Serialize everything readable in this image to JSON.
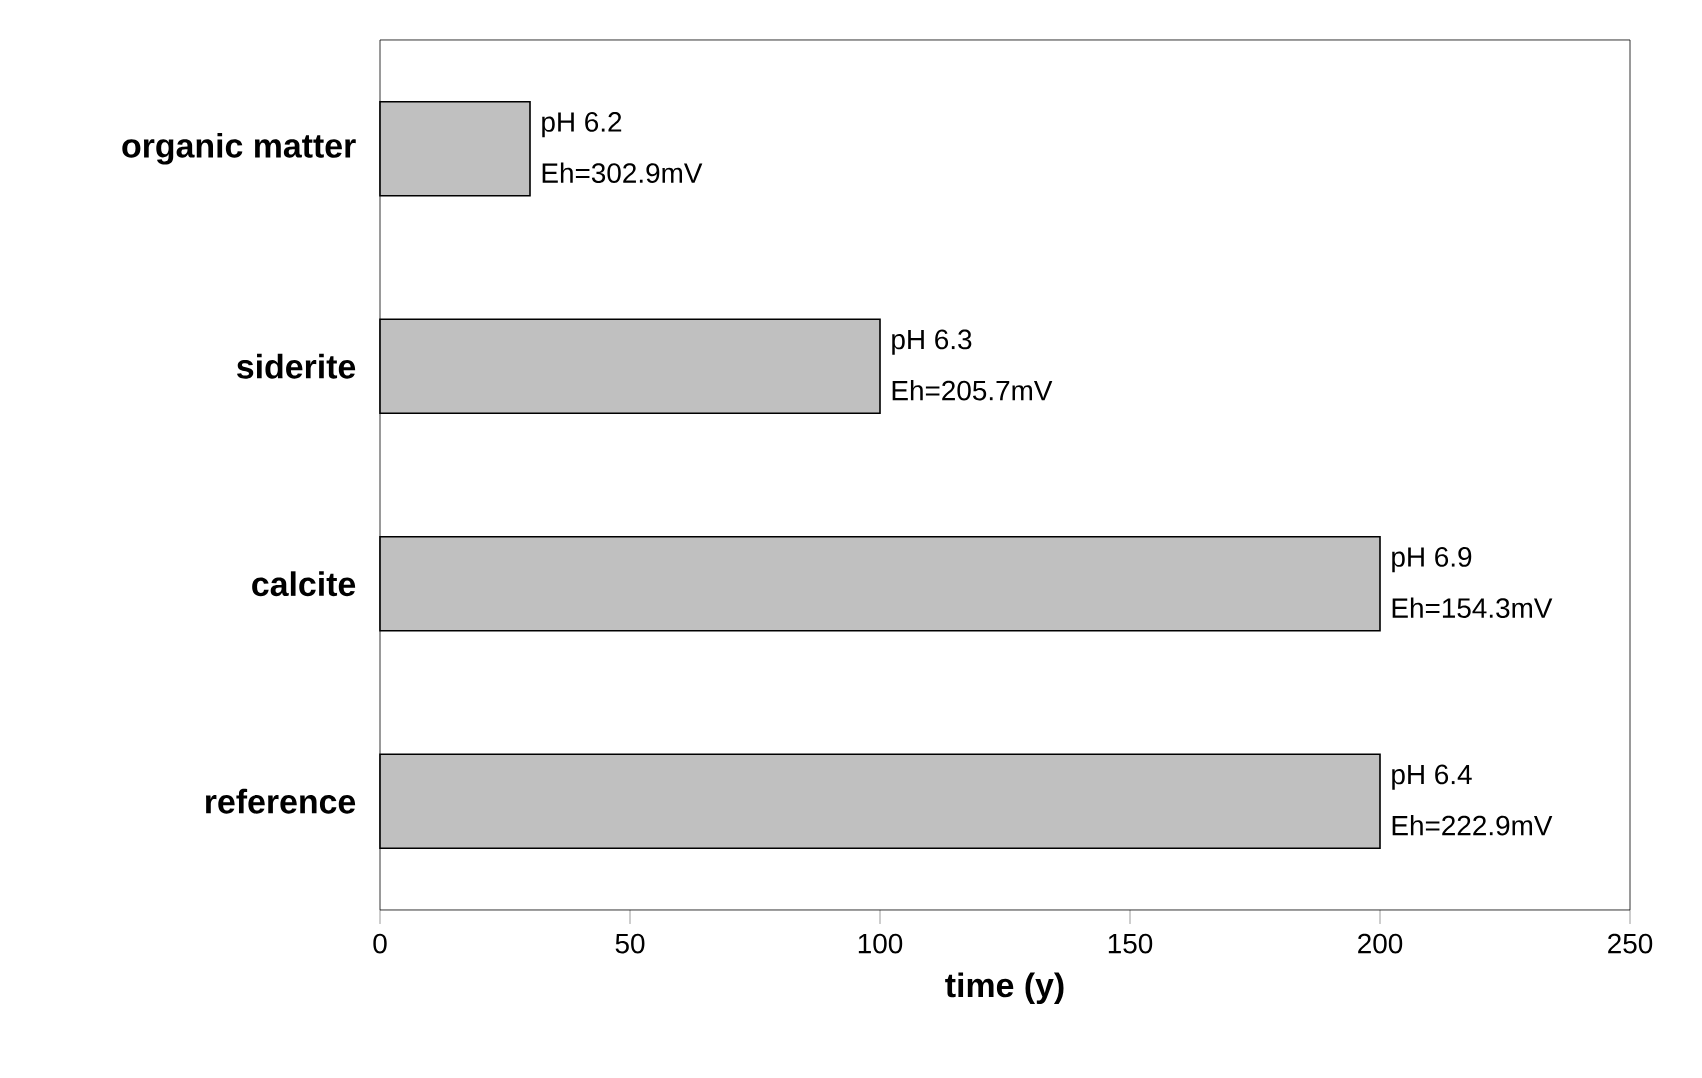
{
  "chart_data": {
    "type": "bar",
    "orientation": "horizontal",
    "xlabel": "time (y)",
    "categories": [
      "organic matter",
      "siderite",
      "calcite",
      "reference"
    ],
    "values": [
      30,
      100,
      200,
      200
    ],
    "color": "#c0c0c0",
    "xlim": [
      0,
      250
    ],
    "xticks": [
      0,
      50,
      100,
      150,
      200,
      250
    ],
    "annotations": [
      {
        "text": "pH 6.2",
        "x": 30,
        "y": "organic matter"
      },
      {
        "text": "Eh=302.9mV",
        "x": 30,
        "y": "organic matter"
      },
      {
        "text": "pH 6.3",
        "x": 100,
        "y": "siderite"
      },
      {
        "text": "Eh=205.7mV",
        "x": 100,
        "y": "siderite"
      },
      {
        "text": "pH 6.9",
        "x": 200,
        "y": "calcite"
      },
      {
        "text": "Eh=154.3mV",
        "x": 200,
        "y": "calcite"
      },
      {
        "text": "pH 6.4",
        "x": 200,
        "y": "reference"
      },
      {
        "text": "Eh=222.9mV",
        "x": 200,
        "y": "reference"
      }
    ]
  }
}
